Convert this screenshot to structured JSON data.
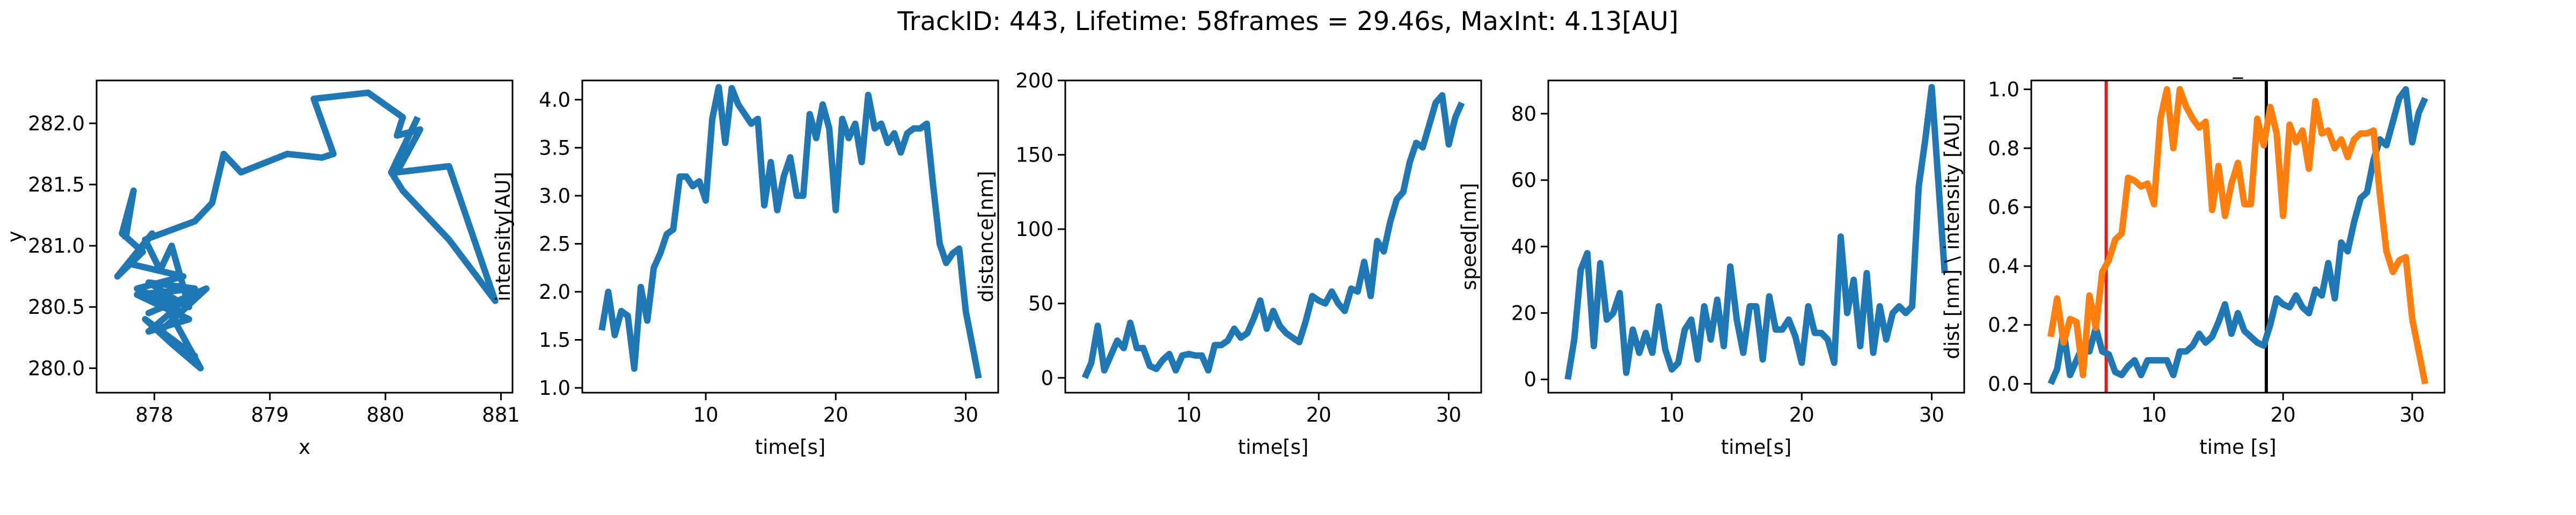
{
  "suptitle": "TrackID: 443, Lifetime: 58frames = 29.46s, MaxInt: 4.13[AU]",
  "colors": {
    "blue": "#1f77b4",
    "orange": "#ff7f0e",
    "red": "#e41a1c",
    "black": "#000000",
    "axis": "#000000"
  },
  "chart_data": [
    {
      "type": "line",
      "xlabel": "x",
      "ylabel": "y",
      "xlim": [
        877.5,
        881.1
      ],
      "ylim": [
        279.8,
        282.35
      ],
      "xticks": [
        878,
        879,
        880,
        881
      ],
      "yticks": [
        280.0,
        280.5,
        281.0,
        281.5,
        282.0
      ],
      "xtick_labels": [
        "878",
        "879",
        "880",
        "881"
      ],
      "ytick_labels": [
        "280.0",
        "280.5",
        "281.0",
        "281.5",
        "282.0"
      ],
      "grid": false,
      "series": [
        {
          "x": [
            877.75,
            877.82,
            877.72,
            877.9,
            877.68,
            877.98,
            877.8,
            878.25,
            877.85,
            878.2,
            877.95,
            878.3,
            877.85,
            878.35,
            877.95,
            878.2,
            877.95,
            878.45,
            878.05,
            878.35,
            877.92,
            878.15,
            878.4,
            878.05,
            878.3,
            878.15,
            878.05,
            877.92,
            878.35,
            878.5,
            878.6,
            878.75,
            879.15,
            879.45,
            879.55,
            879.38,
            879.85,
            880.15,
            880.1,
            880.3,
            880.1,
            880.55,
            880.95,
            880.55,
            880.15,
            880.05,
            880.28
          ],
          "y": [
            281.05,
            281.45,
            281.1,
            280.95,
            280.75,
            281.1,
            280.85,
            280.75,
            280.65,
            280.5,
            280.3,
            280.4,
            280.6,
            280.65,
            280.7,
            280.55,
            280.45,
            280.65,
            280.3,
            280.1,
            280.4,
            280.2,
            280.0,
            280.6,
            280.5,
            281.0,
            280.8,
            281.05,
            281.2,
            281.35,
            281.75,
            281.6,
            281.75,
            281.72,
            281.75,
            282.2,
            282.25,
            282.05,
            281.9,
            281.95,
            281.6,
            281.65,
            280.55,
            281.05,
            281.45,
            281.6,
            282.05
          ]
        }
      ]
    },
    {
      "type": "line",
      "xlabel": "time[s]",
      "ylabel": "intensity[AU]",
      "xlim": [
        0.5,
        32.5
      ],
      "ylim": [
        0.95,
        4.2
      ],
      "xticks": [
        10,
        20,
        30
      ],
      "yticks": [
        1.0,
        1.5,
        2.0,
        2.5,
        3.0,
        3.5,
        4.0
      ],
      "xtick_labels": [
        "10",
        "20",
        "30"
      ],
      "ytick_labels": [
        "1.0",
        "1.5",
        "2.0",
        "2.5",
        "3.0",
        "3.5",
        "4.0"
      ],
      "grid": false,
      "series": [
        {
          "x": [
            2.0,
            2.5,
            3.0,
            3.5,
            4.0,
            4.5,
            5.0,
            5.5,
            6.0,
            6.5,
            7.0,
            7.5,
            8.0,
            8.5,
            9.0,
            9.5,
            10.0,
            10.5,
            11.0,
            11.5,
            12.0,
            12.5,
            13.0,
            13.5,
            14.0,
            14.5,
            15.0,
            15.5,
            16.0,
            16.5,
            17.0,
            17.5,
            18.0,
            18.5,
            19.0,
            19.5,
            20.0,
            20.5,
            21.0,
            21.5,
            22.0,
            22.5,
            23.0,
            23.5,
            24.0,
            24.5,
            25.0,
            25.5,
            26.0,
            26.5,
            27.0,
            27.5,
            28.0,
            28.5,
            29.0,
            29.5,
            30.0,
            30.5,
            31.0
          ],
          "y": [
            1.6,
            2.0,
            1.55,
            1.8,
            1.75,
            1.2,
            2.05,
            1.7,
            2.25,
            2.4,
            2.6,
            2.65,
            3.2,
            3.2,
            3.1,
            3.15,
            2.95,
            3.8,
            4.13,
            3.55,
            4.12,
            3.95,
            3.85,
            3.75,
            3.8,
            2.9,
            3.35,
            2.85,
            3.2,
            3.4,
            3.0,
            3.0,
            3.85,
            3.6,
            3.95,
            3.7,
            2.85,
            3.8,
            3.6,
            3.75,
            3.35,
            4.05,
            3.7,
            3.75,
            3.55,
            3.65,
            3.45,
            3.65,
            3.7,
            3.7,
            3.75,
            3.1,
            2.5,
            2.3,
            2.4,
            2.45,
            1.8,
            1.45,
            1.1
          ]
        }
      ]
    },
    {
      "type": "line",
      "xlabel": "time[s]",
      "ylabel": "distance[nm]",
      "xlim": [
        0.5,
        32.5
      ],
      "ylim": [
        -10,
        200
      ],
      "xticks": [
        10,
        20,
        30
      ],
      "yticks": [
        0,
        50,
        100,
        150,
        200
      ],
      "xtick_labels": [
        "10",
        "20",
        "30"
      ],
      "ytick_labels": [
        "0",
        "50",
        "100",
        "150",
        "200"
      ],
      "grid": false,
      "series": [
        {
          "x": [
            2.0,
            2.5,
            3.0,
            3.5,
            4.0,
            4.5,
            5.0,
            5.5,
            6.0,
            6.5,
            7.0,
            7.5,
            8.0,
            8.5,
            9.0,
            9.5,
            10.0,
            10.5,
            11.0,
            11.5,
            12.0,
            12.5,
            13.0,
            13.5,
            14.0,
            14.5,
            15.0,
            15.5,
            16.0,
            16.5,
            17.0,
            17.5,
            18.0,
            18.5,
            19.0,
            19.5,
            20.0,
            20.5,
            21.0,
            21.5,
            22.0,
            22.5,
            23.0,
            23.5,
            24.0,
            24.5,
            25.0,
            25.5,
            26.0,
            26.5,
            27.0,
            27.5,
            28.0,
            28.5,
            29.0,
            29.5,
            30.0,
            30.5,
            31.0
          ],
          "y": [
            0,
            10,
            35,
            5,
            15,
            25,
            20,
            37,
            20,
            20,
            8,
            6,
            12,
            16,
            5,
            15,
            16,
            15,
            15,
            5,
            22,
            22,
            25,
            33,
            27,
            30,
            40,
            52,
            33,
            45,
            35,
            30,
            27,
            24,
            38,
            55,
            52,
            50,
            58,
            50,
            45,
            60,
            58,
            78,
            55,
            92,
            85,
            105,
            120,
            125,
            145,
            158,
            155,
            170,
            185,
            190,
            157,
            175,
            185
          ]
        }
      ]
    },
    {
      "type": "line",
      "xlabel": "time[s]",
      "ylabel": "speed[nm]",
      "xlim": [
        0.5,
        32.5
      ],
      "ylim": [
        -4,
        90
      ],
      "xticks": [
        10,
        20,
        30
      ],
      "yticks": [
        0,
        20,
        40,
        60,
        80
      ],
      "xtick_labels": [
        "10",
        "20",
        "30"
      ],
      "ytick_labels": [
        "0",
        "20",
        "40",
        "60",
        "80"
      ],
      "grid": false,
      "series": [
        {
          "x": [
            2.0,
            2.5,
            3.0,
            3.5,
            4.0,
            4.5,
            5.0,
            5.5,
            6.0,
            6.5,
            7.0,
            7.5,
            8.0,
            8.5,
            9.0,
            9.5,
            10.0,
            10.5,
            11.0,
            11.5,
            12.0,
            12.5,
            13.0,
            13.5,
            14.0,
            14.5,
            15.0,
            15.5,
            16.0,
            16.5,
            17.0,
            17.5,
            18.0,
            18.5,
            19.0,
            19.5,
            20.0,
            20.5,
            21.0,
            21.5,
            22.0,
            22.5,
            23.0,
            23.5,
            24.0,
            24.5,
            25.0,
            25.5,
            26.0,
            26.5,
            27.0,
            27.5,
            28.0,
            28.5,
            29.0,
            29.5,
            30.0,
            30.5,
            31.0
          ],
          "y": [
            0,
            12,
            33,
            38,
            10,
            35,
            18,
            20,
            26,
            2,
            15,
            8,
            14,
            8,
            22,
            9,
            3,
            5,
            15,
            18,
            6,
            22,
            12,
            24,
            10,
            34,
            18,
            8,
            22,
            22,
            6,
            25,
            15,
            15,
            18,
            13,
            5,
            22,
            14,
            14,
            12,
            5,
            43,
            20,
            30,
            10,
            32,
            8,
            22,
            12,
            20,
            22,
            20,
            22,
            58,
            72,
            88,
            60,
            32
          ]
        }
      ]
    },
    {
      "type": "line",
      "title": "_",
      "xlabel": "time [s]",
      "ylabel": "dist [nm] \\ intensity [AU]",
      "xlim": [
        0.5,
        32.5
      ],
      "ylim": [
        -0.03,
        1.03
      ],
      "xticks": [
        10,
        20,
        30
      ],
      "yticks": [
        0.0,
        0.2,
        0.4,
        0.6,
        0.8,
        1.0
      ],
      "xtick_labels": [
        "10",
        "20",
        "30"
      ],
      "ytick_labels": [
        "0.0",
        "0.2",
        "0.4",
        "0.6",
        "0.8",
        "1.0"
      ],
      "grid": false,
      "vlines": [
        {
          "x": 6.3,
          "color": "#e41a1c"
        },
        {
          "x": 18.7,
          "color": "#000000"
        }
      ],
      "series": [
        {
          "color": "#1f77b4",
          "x": [
            2.0,
            2.5,
            3.0,
            3.5,
            4.0,
            4.5,
            5.0,
            5.5,
            6.0,
            6.5,
            7.0,
            7.5,
            8.0,
            8.5,
            9.0,
            9.5,
            10.0,
            10.5,
            11.0,
            11.5,
            12.0,
            12.5,
            13.0,
            13.5,
            14.0,
            14.5,
            15.0,
            15.5,
            16.0,
            16.5,
            17.0,
            17.5,
            18.0,
            18.5,
            19.0,
            19.5,
            20.0,
            20.5,
            21.0,
            21.5,
            22.0,
            22.5,
            23.0,
            23.5,
            24.0,
            24.5,
            25.0,
            25.5,
            26.0,
            26.5,
            27.0,
            27.5,
            28.0,
            28.5,
            29.0,
            29.5,
            30.0,
            30.5,
            31.0
          ],
          "y": [
            0.0,
            0.05,
            0.18,
            0.03,
            0.08,
            0.13,
            0.11,
            0.19,
            0.11,
            0.1,
            0.04,
            0.03,
            0.06,
            0.08,
            0.03,
            0.08,
            0.08,
            0.08,
            0.08,
            0.03,
            0.11,
            0.11,
            0.13,
            0.17,
            0.14,
            0.16,
            0.21,
            0.27,
            0.17,
            0.24,
            0.18,
            0.16,
            0.14,
            0.13,
            0.2,
            0.29,
            0.27,
            0.26,
            0.3,
            0.26,
            0.24,
            0.32,
            0.3,
            0.41,
            0.29,
            0.48,
            0.45,
            0.55,
            0.63,
            0.65,
            0.76,
            0.83,
            0.81,
            0.89,
            0.97,
            1.0,
            0.82,
            0.92,
            0.97
          ]
        },
        {
          "color": "#ff7f0e",
          "x": [
            2.0,
            2.5,
            3.0,
            3.5,
            4.0,
            4.5,
            5.0,
            5.5,
            6.0,
            6.5,
            7.0,
            7.5,
            8.0,
            8.5,
            9.0,
            9.5,
            10.0,
            10.5,
            11.0,
            11.5,
            12.0,
            12.5,
            13.0,
            13.5,
            14.0,
            14.5,
            15.0,
            15.5,
            16.0,
            16.5,
            17.0,
            17.5,
            18.0,
            18.5,
            19.0,
            19.5,
            20.0,
            20.5,
            21.0,
            21.5,
            22.0,
            22.5,
            23.0,
            23.5,
            24.0,
            24.5,
            25.0,
            25.5,
            26.0,
            26.5,
            27.0,
            27.5,
            28.0,
            28.5,
            29.0,
            29.5,
            30.0,
            30.5,
            31.0
          ],
          "y": [
            0.16,
            0.29,
            0.14,
            0.22,
            0.21,
            0.03,
            0.3,
            0.19,
            0.38,
            0.42,
            0.49,
            0.51,
            0.7,
            0.69,
            0.67,
            0.68,
            0.61,
            0.9,
            1.0,
            0.8,
            1.0,
            0.94,
            0.9,
            0.87,
            0.89,
            0.59,
            0.74,
            0.57,
            0.68,
            0.75,
            0.61,
            0.61,
            0.9,
            0.81,
            0.94,
            0.85,
            0.57,
            0.88,
            0.82,
            0.86,
            0.73,
            0.96,
            0.85,
            0.86,
            0.8,
            0.83,
            0.77,
            0.83,
            0.85,
            0.85,
            0.86,
            0.64,
            0.45,
            0.38,
            0.42,
            0.43,
            0.22,
            0.11,
            0.0
          ]
        }
      ]
    }
  ]
}
